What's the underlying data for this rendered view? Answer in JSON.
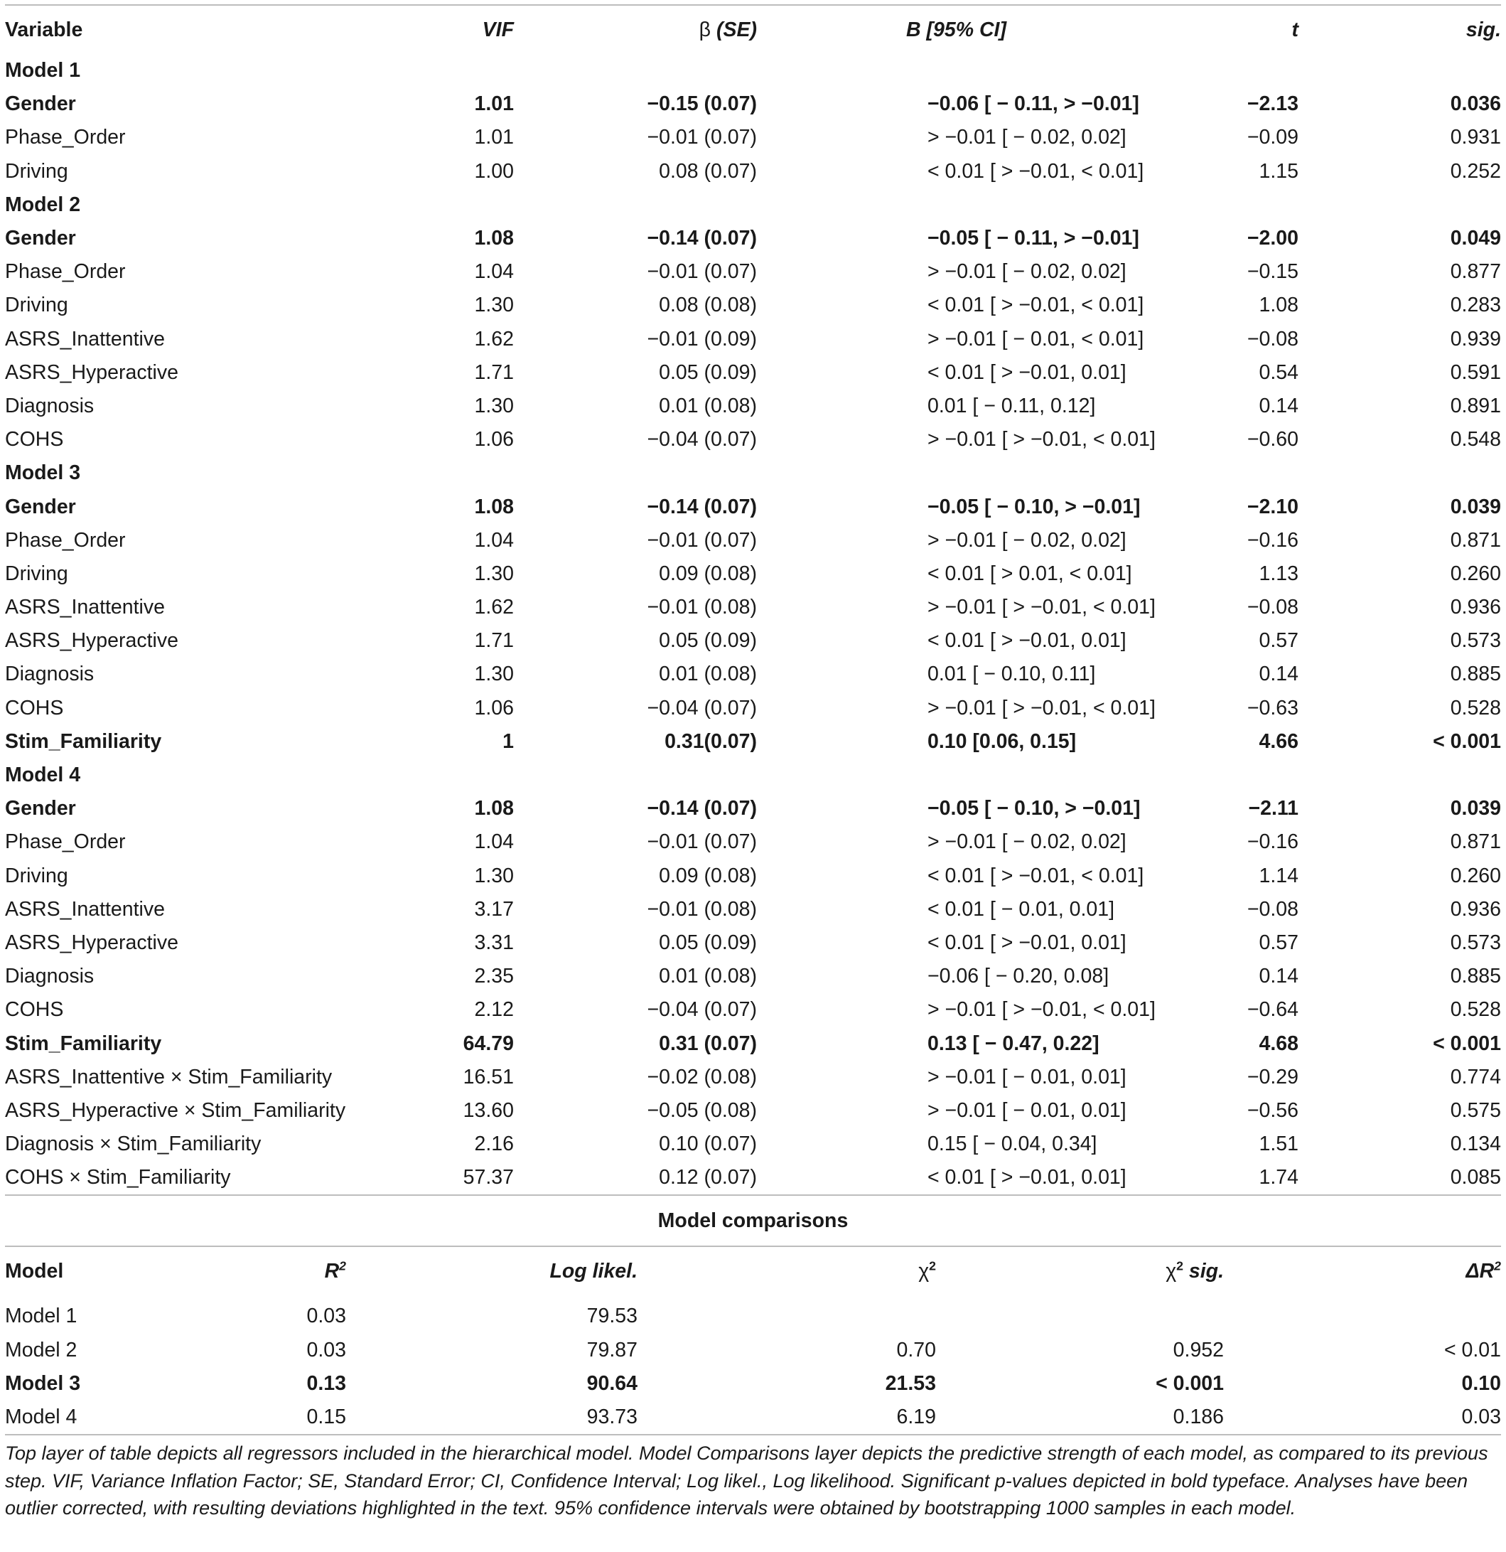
{
  "main_table": {
    "headers": {
      "variable": "Variable",
      "vif": "VIF",
      "beta_prefix": "β",
      "beta_suffix": " (SE)",
      "b": "B [95% CI]",
      "t": "t",
      "sig": "sig."
    },
    "models": [
      {
        "label": "Model 1",
        "rows": [
          {
            "var": "Gender",
            "vif": "1.01",
            "beta": "−0.15 (0.07)",
            "b": "−0.06 [ − 0.11, > −0.01]",
            "t": "−2.13",
            "sig": "0.036",
            "bold": true
          },
          {
            "var": "Phase_Order",
            "vif": "1.01",
            "beta": "−0.01 (0.07)",
            "b": "> −0.01 [ − 0.02, 0.02]",
            "t": "−0.09",
            "sig": "0.931",
            "bold": false
          },
          {
            "var": "Driving",
            "vif": "1.00",
            "beta": "0.08 (0.07)",
            "b": "< 0.01 [ > −0.01, < 0.01]",
            "t": "1.15",
            "sig": "0.252",
            "bold": false
          }
        ]
      },
      {
        "label": "Model 2",
        "rows": [
          {
            "var": "Gender",
            "vif": "1.08",
            "beta": "−0.14 (0.07)",
            "b": "−0.05 [ − 0.11, > −0.01]",
            "t": "−2.00",
            "sig": "0.049",
            "bold": true
          },
          {
            "var": "Phase_Order",
            "vif": "1.04",
            "beta": "−0.01 (0.07)",
            "b": "> −0.01 [ − 0.02, 0.02]",
            "t": "−0.15",
            "sig": "0.877",
            "bold": false
          },
          {
            "var": "Driving",
            "vif": "1.30",
            "beta": "0.08 (0.08)",
            "b": "< 0.01 [ > −0.01, < 0.01]",
            "t": "1.08",
            "sig": "0.283",
            "bold": false
          },
          {
            "var": "ASRS_Inattentive",
            "vif": "1.62",
            "beta": "−0.01 (0.09)",
            "b": "> −0.01 [ − 0.01, < 0.01]",
            "t": "−0.08",
            "sig": "0.939",
            "bold": false
          },
          {
            "var": "ASRS_Hyperactive",
            "vif": "1.71",
            "beta": "0.05 (0.09)",
            "b": "< 0.01 [ > −0.01, 0.01]",
            "t": "0.54",
            "sig": "0.591",
            "bold": false
          },
          {
            "var": "Diagnosis",
            "vif": "1.30",
            "beta": "0.01 (0.08)",
            "b": "0.01 [ − 0.11, 0.12]",
            "t": "0.14",
            "sig": "0.891",
            "bold": false
          },
          {
            "var": "COHS",
            "vif": "1.06",
            "beta": "−0.04 (0.07)",
            "b": "> −0.01 [ > −0.01, < 0.01]",
            "t": "−0.60",
            "sig": "0.548",
            "bold": false
          }
        ]
      },
      {
        "label": "Model 3",
        "rows": [
          {
            "var": "Gender",
            "vif": "1.08",
            "beta": "−0.14 (0.07)",
            "b": "−0.05 [ − 0.10, > −0.01]",
            "t": "−2.10",
            "sig": "0.039",
            "bold": true
          },
          {
            "var": "Phase_Order",
            "vif": "1.04",
            "beta": "−0.01 (0.07)",
            "b": "> −0.01 [ − 0.02, 0.02]",
            "t": "−0.16",
            "sig": "0.871",
            "bold": false
          },
          {
            "var": "Driving",
            "vif": "1.30",
            "beta": "0.09 (0.08)",
            "b": "< 0.01 [ > 0.01, < 0.01]",
            "t": "1.13",
            "sig": "0.260",
            "bold": false
          },
          {
            "var": "ASRS_Inattentive",
            "vif": "1.62",
            "beta": "−0.01 (0.08)",
            "b": "> −0.01 [ > −0.01, < 0.01]",
            "t": "−0.08",
            "sig": "0.936",
            "bold": false
          },
          {
            "var": "ASRS_Hyperactive",
            "vif": "1.71",
            "beta": "0.05 (0.09)",
            "b": "< 0.01 [ > −0.01, 0.01]",
            "t": "0.57",
            "sig": "0.573",
            "bold": false
          },
          {
            "var": "Diagnosis",
            "vif": "1.30",
            "beta": "0.01 (0.08)",
            "b": "0.01 [ − 0.10, 0.11]",
            "t": "0.14",
            "sig": "0.885",
            "bold": false
          },
          {
            "var": "COHS",
            "vif": "1.06",
            "beta": "−0.04 (0.07)",
            "b": "> −0.01 [ > −0.01, < 0.01]",
            "t": "−0.63",
            "sig": "0.528",
            "bold": false
          },
          {
            "var": "Stim_Familiarity",
            "vif": "1",
            "beta": "0.31(0.07)",
            "b": "0.10 [0.06, 0.15]",
            "t": "4.66",
            "sig": "< 0.001",
            "bold": true
          }
        ]
      },
      {
        "label": "Model 4",
        "rows": [
          {
            "var": "Gender",
            "vif": "1.08",
            "beta": "−0.14 (0.07)",
            "b": "−0.05 [ − 0.10, > −0.01]",
            "t": "−2.11",
            "sig": "0.039",
            "bold": true
          },
          {
            "var": "Phase_Order",
            "vif": "1.04",
            "beta": "−0.01 (0.07)",
            "b": "> −0.01 [ − 0.02, 0.02]",
            "t": "−0.16",
            "sig": "0.871",
            "bold": false
          },
          {
            "var": "Driving",
            "vif": "1.30",
            "beta": "0.09 (0.08)",
            "b": "< 0.01 [ > −0.01, < 0.01]",
            "t": "1.14",
            "sig": "0.260",
            "bold": false
          },
          {
            "var": "ASRS_Inattentive",
            "vif": "3.17",
            "beta": "−0.01 (0.08)",
            "b": "< 0.01 [ − 0.01, 0.01]",
            "t": "−0.08",
            "sig": "0.936",
            "bold": false
          },
          {
            "var": "ASRS_Hyperactive",
            "vif": "3.31",
            "beta": "0.05 (0.09)",
            "b": "< 0.01 [ > −0.01, 0.01]",
            "t": "0.57",
            "sig": "0.573",
            "bold": false
          },
          {
            "var": "Diagnosis",
            "vif": "2.35",
            "beta": "0.01 (0.08)",
            "b": "−0.06 [ − 0.20, 0.08]",
            "t": "0.14",
            "sig": "0.885",
            "bold": false
          },
          {
            "var": "COHS",
            "vif": "2.12",
            "beta": "−0.04 (0.07)",
            "b": "> −0.01 [ > −0.01, < 0.01]",
            "t": "−0.64",
            "sig": "0.528",
            "bold": false
          },
          {
            "var": "Stim_Familiarity",
            "vif": "64.79",
            "beta": "0.31 (0.07)",
            "b": "0.13 [ − 0.47, 0.22]",
            "t": "4.68",
            "sig": "< 0.001",
            "bold": true
          },
          {
            "var": "ASRS_Inattentive × Stim_Familiarity",
            "vif": "16.51",
            "beta": "−0.02 (0.08)",
            "b": "> −0.01 [ − 0.01, 0.01]",
            "t": "−0.29",
            "sig": "0.774",
            "bold": false
          },
          {
            "var": "ASRS_Hyperactive × Stim_Familiarity",
            "vif": "13.60",
            "beta": "−0.05 (0.08)",
            "b": "> −0.01 [ − 0.01, 0.01]",
            "t": "−0.56",
            "sig": "0.575",
            "bold": false
          },
          {
            "var": "Diagnosis × Stim_Familiarity",
            "vif": "2.16",
            "beta": "0.10 (0.07)",
            "b": "0.15 [ − 0.04, 0.34]",
            "t": "1.51",
            "sig": "0.134",
            "bold": false
          },
          {
            "var": "COHS × Stim_Familiarity",
            "vif": "57.37",
            "beta": "0.12 (0.07)",
            "b": "< 0.01 [ > −0.01, 0.01]",
            "t": "1.74",
            "sig": "0.085",
            "bold": false
          }
        ]
      }
    ]
  },
  "comparison": {
    "title": "Model comparisons",
    "headers": {
      "model": "Model",
      "r2_base": "R",
      "r2_sup": "2",
      "loglik": "Log likel.",
      "chi2_base": "χ",
      "chi2_sup": "2",
      "chi2sig_base": "χ",
      "chi2sig_sup": "2",
      "chi2sig_suffix": " sig.",
      "dr2_base": "ΔR",
      "dr2_sup": "2"
    },
    "rows": [
      {
        "model": "Model 1",
        "r2": "0.03",
        "loglik": "79.53",
        "chi2": "",
        "chi2sig": "",
        "dr2": "",
        "bold": false
      },
      {
        "model": "Model 2",
        "r2": "0.03",
        "loglik": "79.87",
        "chi2": "0.70",
        "chi2sig": "0.952",
        "dr2": "< 0.01",
        "bold": false
      },
      {
        "model": "Model 3",
        "r2": "0.13",
        "loglik": "90.64",
        "chi2": "21.53",
        "chi2sig": "< 0.001",
        "dr2": "0.10",
        "bold": true
      },
      {
        "model": "Model 4",
        "r2": "0.15",
        "loglik": "93.73",
        "chi2": "6.19",
        "chi2sig": "0.186",
        "dr2": "0.03",
        "bold": false
      }
    ]
  },
  "note": "Top layer of table depicts all regressors included in the hierarchical model. Model Comparisons layer depicts the predictive strength of each model, as compared to its previous step. VIF, Variance Inflation Factor; SE, Standard Error; CI, Confidence Interval; Log likel., Log likelihood. Significant p-values depicted in bold typeface. Analyses have been outlier corrected, with resulting deviations highlighted in the text. 95% confidence intervals were obtained by bootstrapping 1000 samples in each model."
}
